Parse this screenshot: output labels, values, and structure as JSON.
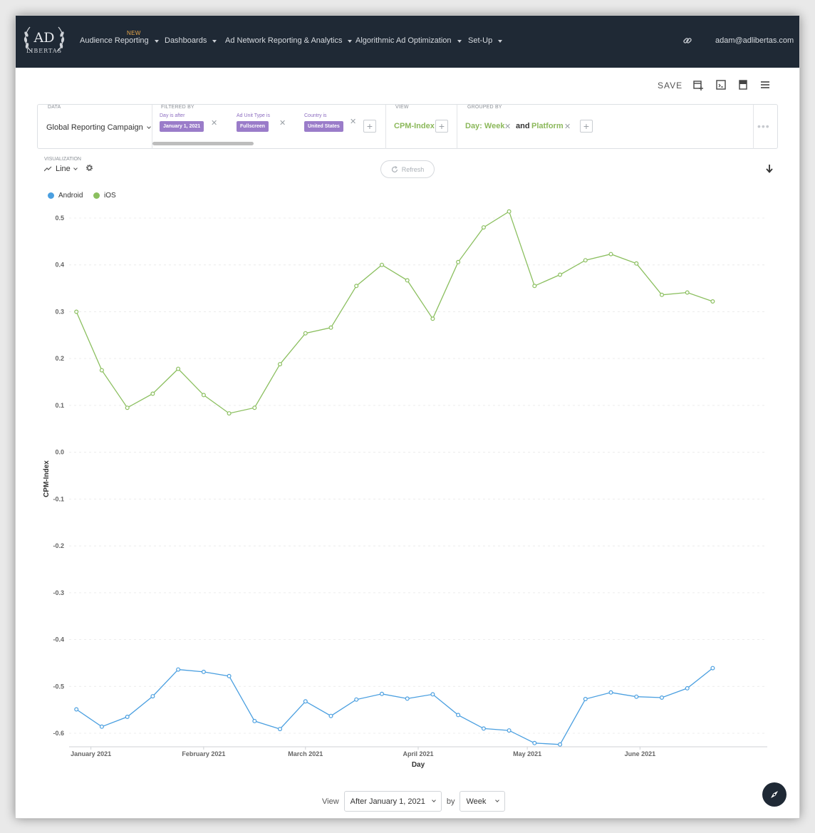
{
  "nav": {
    "logo_text_top": "AD",
    "logo_text_bottom": "LIBERTAS",
    "new_badge": "NEW",
    "items": [
      {
        "label": "Audience Reporting"
      },
      {
        "label": "Dashboards"
      },
      {
        "label": "Ad Network Reporting & Analytics"
      },
      {
        "label": "Algorithmic Ad Optimization"
      },
      {
        "label": "Set-Up"
      }
    ],
    "user": "adam@adlibertas.com"
  },
  "toolbar": {
    "save_label": "SAVE"
  },
  "query": {
    "data_label": "DATA",
    "data_source": "Global Reporting Campaign",
    "filtered_label": "FILTERED BY",
    "filters": [
      {
        "label": "Day is after",
        "value": "January 1, 2021"
      },
      {
        "label": "Ad Unit Type is",
        "value": "Fullscreen"
      },
      {
        "label": "Country is",
        "value": "United States"
      }
    ],
    "view_label": "VIEW",
    "view_value": "CPM-Index",
    "grouped_label": "GROUPED BY",
    "group_1": "Day: Week",
    "group_joiner": "and",
    "group_2": "Platform"
  },
  "visualization": {
    "label": "VISUALIZATION",
    "type": "Line",
    "refresh_label": "Refresh"
  },
  "colors": {
    "android": "#4a9fe0",
    "ios": "#8bbf5f",
    "nav_bg": "#1f2935",
    "filter_pill": "#9a7cc9"
  },
  "chart_data": {
    "type": "line",
    "xlabel": "Day",
    "ylabel": "CPM-Index",
    "ylim": [
      -0.63,
      0.52
    ],
    "yticks": [
      "0.5",
      "0.4",
      "0.3",
      "0.2",
      "0.1",
      "0.0",
      "-0.1",
      "-0.2",
      "-0.3",
      "-0.4",
      "-0.5",
      "-0.6"
    ],
    "ytick_values": [
      0.5,
      0.4,
      0.3,
      0.2,
      0.1,
      0.0,
      -0.1,
      -0.2,
      -0.3,
      -0.4,
      -0.5,
      -0.6
    ],
    "x_tick_labels": [
      "January 2021",
      "February 2021",
      "March 2021",
      "April 2021",
      "May 2021",
      "June 2021"
    ],
    "x_tick_dates": [
      "2021-01-01",
      "2021-02-01",
      "2021-03-01",
      "2021-04-01",
      "2021-05-01",
      "2021-06-01"
    ],
    "x_domain": [
      "2020-12-26",
      "2021-07-06"
    ],
    "x": [
      "2020-12-28",
      "2021-01-04",
      "2021-01-11",
      "2021-01-18",
      "2021-01-25",
      "2021-02-01",
      "2021-02-08",
      "2021-02-15",
      "2021-02-22",
      "2021-03-01",
      "2021-03-08",
      "2021-03-15",
      "2021-03-22",
      "2021-03-29",
      "2021-04-05",
      "2021-04-12",
      "2021-04-19",
      "2021-04-26",
      "2021-05-03",
      "2021-05-10",
      "2021-05-17",
      "2021-05-24",
      "2021-05-31",
      "2021-06-07",
      "2021-06-14",
      "2021-06-21"
    ],
    "series": [
      {
        "name": "Android",
        "values": [
          -0.549,
          -0.586,
          -0.565,
          -0.521,
          -0.464,
          -0.469,
          -0.478,
          -0.574,
          -0.591,
          -0.532,
          -0.563,
          -0.528,
          -0.516,
          -0.526,
          -0.517,
          -0.561,
          -0.59,
          -0.594,
          -0.621,
          -0.624,
          -0.527,
          -0.513,
          -0.522,
          -0.524,
          -0.504,
          -0.461
        ]
      },
      {
        "name": "iOS",
        "values": [
          0.3,
          0.175,
          0.095,
          0.125,
          0.178,
          0.122,
          0.083,
          0.095,
          0.188,
          0.254,
          0.266,
          0.355,
          0.4,
          0.367,
          0.285,
          0.406,
          0.48,
          0.514,
          0.355,
          0.379,
          0.41,
          0.423,
          0.403,
          0.336,
          0.341,
          0.322
        ]
      }
    ],
    "legend_position": "top-left",
    "grid": true
  },
  "bottom": {
    "view_label": "View",
    "range_value": "After January 1, 2021",
    "by_label": "by",
    "interval_value": "Week"
  }
}
